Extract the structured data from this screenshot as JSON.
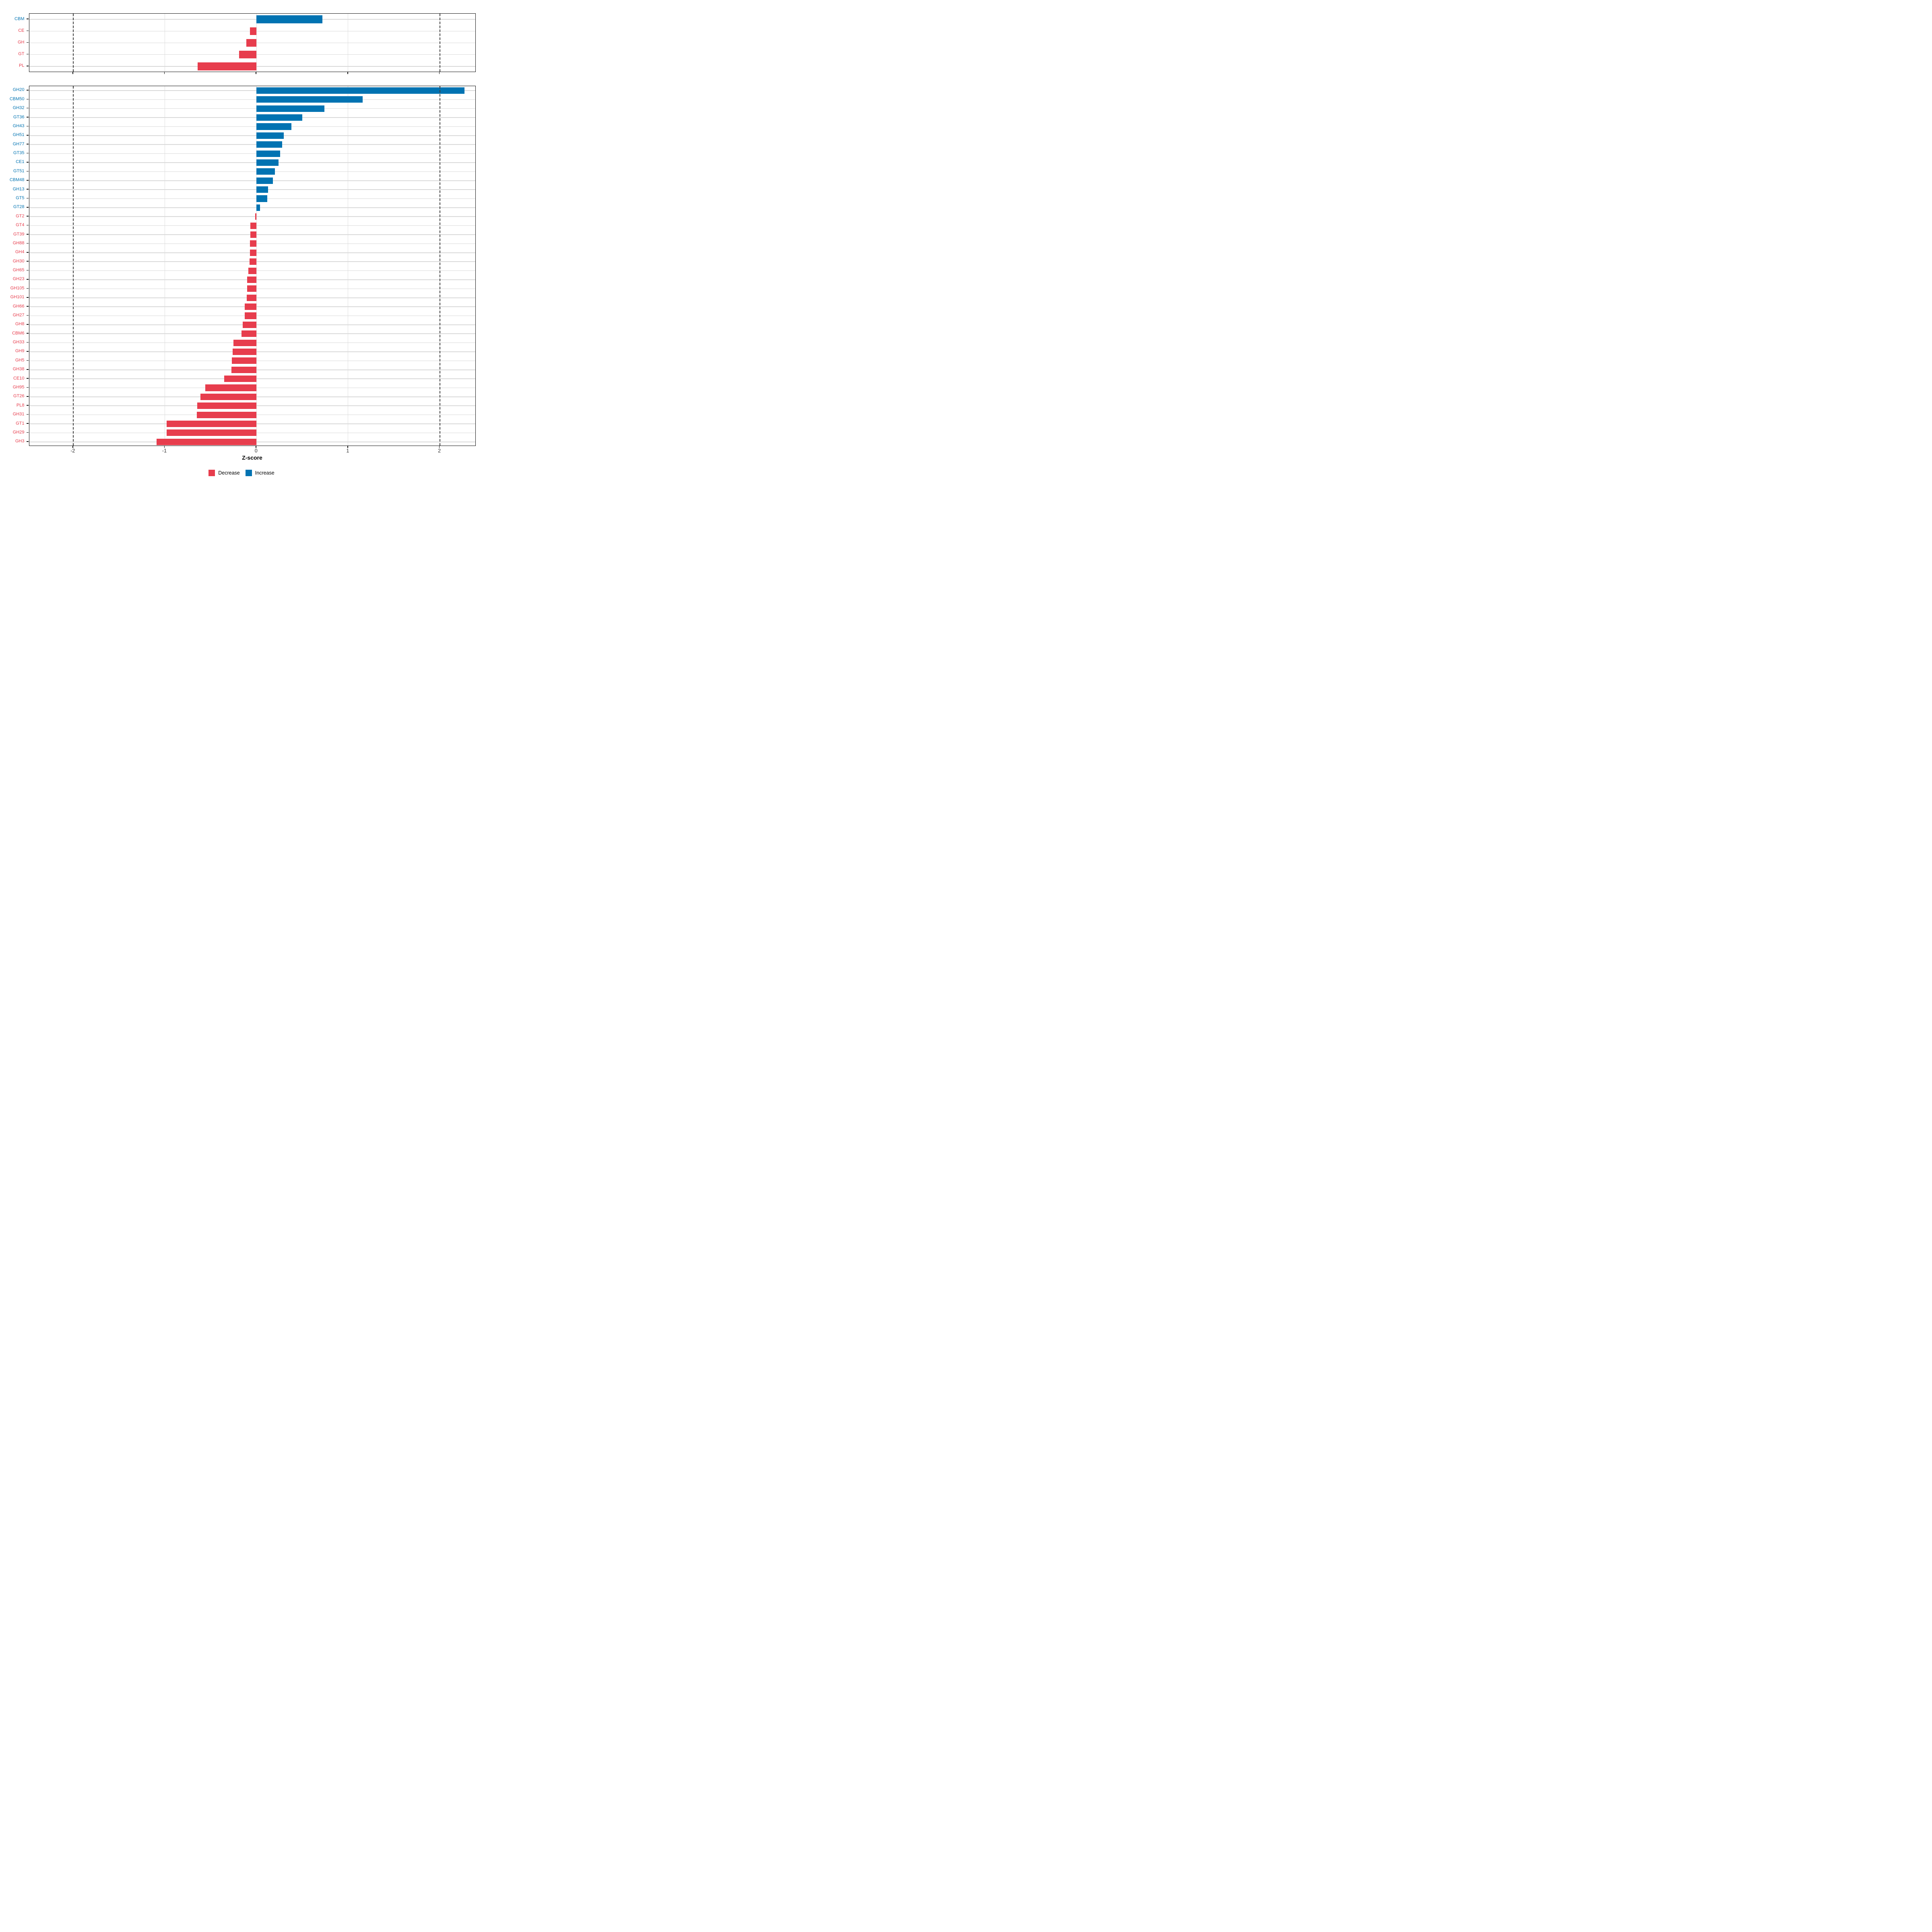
{
  "chart_data": {
    "type": "bar",
    "orientation": "horizontal",
    "title": "",
    "xlabel": "Z-score",
    "x_tick_labels": [
      "-2",
      "-1",
      "0",
      "1",
      "2"
    ],
    "x_tick_values": [
      -2,
      -1,
      0,
      1,
      2
    ],
    "xlim": [
      -2.48,
      2.395
    ],
    "grid": true,
    "reference_lines": {
      "values": [
        -2,
        2
      ],
      "style": "dashed"
    },
    "legend": {
      "position": "bottom",
      "items": [
        {
          "label": "Decrease",
          "color": "#e73d4d",
          "direction": "decrease"
        },
        {
          "label": "Increase",
          "color": "#0173b2",
          "direction": "increase"
        }
      ]
    },
    "panels": [
      {
        "id": "cazyme-class-panel",
        "items": [
          {
            "label": "CBM",
            "value": 0.72
          },
          {
            "label": "CE",
            "value": -0.07
          },
          {
            "label": "GH",
            "value": -0.11
          },
          {
            "label": "GT",
            "value": -0.19
          },
          {
            "label": "PL",
            "value": -0.64
          }
        ]
      },
      {
        "id": "cazyme-family-panel",
        "items": [
          {
            "label": "GH20",
            "value": 2.27
          },
          {
            "label": "CBM50",
            "value": 1.16
          },
          {
            "label": "GH32",
            "value": 0.74
          },
          {
            "label": "GT36",
            "value": 0.5
          },
          {
            "label": "GH43",
            "value": 0.38
          },
          {
            "label": "GH51",
            "value": 0.3
          },
          {
            "label": "GH77",
            "value": 0.28
          },
          {
            "label": "GT35",
            "value": 0.26
          },
          {
            "label": "CE1",
            "value": 0.24
          },
          {
            "label": "GT51",
            "value": 0.2
          },
          {
            "label": "CBM48",
            "value": 0.18
          },
          {
            "label": "GH13",
            "value": 0.125
          },
          {
            "label": "GT5",
            "value": 0.12
          },
          {
            "label": "GT28",
            "value": 0.04
          },
          {
            "label": "GT2",
            "value": -0.015
          },
          {
            "label": "GT4",
            "value": -0.065
          },
          {
            "label": "GT39",
            "value": -0.068
          },
          {
            "label": "GH88",
            "value": -0.07
          },
          {
            "label": "GH4",
            "value": -0.073
          },
          {
            "label": "GH30",
            "value": -0.076
          },
          {
            "label": "GH65",
            "value": -0.09
          },
          {
            "label": "GH23",
            "value": -0.1
          },
          {
            "label": "GH105",
            "value": -0.102
          },
          {
            "label": "GH101",
            "value": -0.106
          },
          {
            "label": "GH66",
            "value": -0.128
          },
          {
            "label": "GH27",
            "value": -0.13
          },
          {
            "label": "GH8",
            "value": -0.15
          },
          {
            "label": "CBM6",
            "value": -0.165
          },
          {
            "label": "GH33",
            "value": -0.25
          },
          {
            "label": "GH9",
            "value": -0.26
          },
          {
            "label": "GH5",
            "value": -0.27
          },
          {
            "label": "GH38",
            "value": -0.272
          },
          {
            "label": "CE10",
            "value": -0.35
          },
          {
            "label": "GH95",
            "value": -0.56
          },
          {
            "label": "GT26",
            "value": -0.61
          },
          {
            "label": "PL8",
            "value": -0.648
          },
          {
            "label": "GH31",
            "value": -0.65
          },
          {
            "label": "GT1",
            "value": -0.98
          },
          {
            "label": "GH29",
            "value": -0.98
          },
          {
            "label": "GH3",
            "value": -1.09
          }
        ]
      }
    ]
  },
  "colors": {
    "decrease": "#e73d4d",
    "increase": "#0173b2",
    "grid": "#d9d9d9",
    "v_grid": "#e0e0e0",
    "dashed_line": "#3f3f3f",
    "panel_border": "#141414",
    "tick_label": "#303030"
  }
}
